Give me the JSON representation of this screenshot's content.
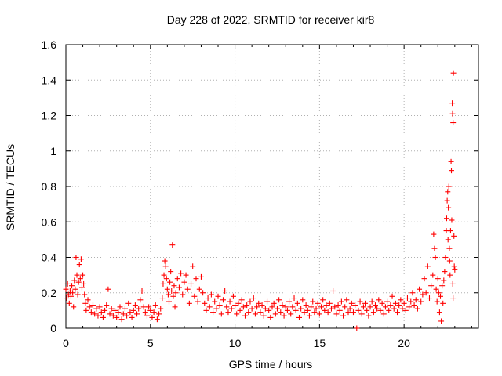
{
  "chart_data": {
    "type": "scatter",
    "title": "Day 228 of 2022, SRMTID for receiver kir8",
    "xlabel": "GPS time / hours",
    "ylabel": "SRMTID / TECUs",
    "xlim": [
      0,
      24.4
    ],
    "ylim": [
      0,
      1.6
    ],
    "xticks": [
      0,
      5,
      10,
      15,
      20
    ],
    "xtick_labels": [
      "0",
      "5",
      "10",
      "15",
      "20"
    ],
    "yticks": [
      0,
      0.2,
      0.4,
      0.6,
      0.8,
      1.0,
      1.2,
      1.4,
      1.6
    ],
    "ytick_labels": [
      "0",
      "0.2",
      "0.4",
      "0.6",
      "0.8",
      "1",
      "1.2",
      "1.4",
      "1.6"
    ],
    "grid": true,
    "marker": "+",
    "color": "#ff0000",
    "series": [
      {
        "name": "SRMTID",
        "points": [
          [
            0.0,
            0.22
          ],
          [
            0.05,
            0.17
          ],
          [
            0.1,
            0.25
          ],
          [
            0.15,
            0.19
          ],
          [
            0.2,
            0.14
          ],
          [
            0.25,
            0.21
          ],
          [
            0.3,
            0.18
          ],
          [
            0.35,
            0.24
          ],
          [
            0.4,
            0.2
          ],
          [
            0.45,
            0.12
          ],
          [
            0.5,
            0.27
          ],
          [
            0.55,
            0.22
          ],
          [
            0.6,
            0.4
          ],
          [
            0.65,
            0.3
          ],
          [
            0.7,
            0.19
          ],
          [
            0.75,
            0.26
          ],
          [
            0.8,
            0.36
          ],
          [
            0.85,
            0.28
          ],
          [
            0.9,
            0.39
          ],
          [
            0.95,
            0.23
          ],
          [
            1.0,
            0.3
          ],
          [
            1.05,
            0.25
          ],
          [
            1.1,
            0.19
          ],
          [
            1.15,
            0.14
          ],
          [
            1.2,
            0.1
          ],
          [
            1.3,
            0.16
          ],
          [
            1.4,
            0.12
          ],
          [
            1.5,
            0.09
          ],
          [
            1.6,
            0.13
          ],
          [
            1.7,
            0.08
          ],
          [
            1.8,
            0.11
          ],
          [
            1.9,
            0.07
          ],
          [
            2.0,
            0.12
          ],
          [
            2.1,
            0.09
          ],
          [
            2.2,
            0.06
          ],
          [
            2.3,
            0.1
          ],
          [
            2.4,
            0.13
          ],
          [
            2.5,
            0.22
          ],
          [
            2.6,
            0.08
          ],
          [
            2.7,
            0.11
          ],
          [
            2.8,
            0.07
          ],
          [
            2.9,
            0.1
          ],
          [
            3.0,
            0.06
          ],
          [
            3.1,
            0.09
          ],
          [
            3.2,
            0.12
          ],
          [
            3.3,
            0.05
          ],
          [
            3.4,
            0.08
          ],
          [
            3.5,
            0.11
          ],
          [
            3.6,
            0.07
          ],
          [
            3.7,
            0.14
          ],
          [
            3.8,
            0.09
          ],
          [
            3.9,
            0.06
          ],
          [
            4.0,
            0.1
          ],
          [
            4.1,
            0.13
          ],
          [
            4.2,
            0.08
          ],
          [
            4.3,
            0.11
          ],
          [
            4.4,
            0.16
          ],
          [
            4.5,
            0.21
          ],
          [
            4.6,
            0.12
          ],
          [
            4.7,
            0.09
          ],
          [
            4.8,
            0.07
          ],
          [
            4.9,
            0.12
          ],
          [
            5.0,
            0.1
          ],
          [
            5.1,
            0.06
          ],
          [
            5.2,
            0.09
          ],
          [
            5.3,
            0.13
          ],
          [
            5.4,
            0.05
          ],
          [
            5.5,
            0.08
          ],
          [
            5.6,
            0.11
          ],
          [
            5.7,
            0.17
          ],
          [
            5.75,
            0.25
          ],
          [
            5.8,
            0.3
          ],
          [
            5.85,
            0.38
          ],
          [
            5.9,
            0.35
          ],
          [
            5.95,
            0.28
          ],
          [
            6.0,
            0.22
          ],
          [
            6.05,
            0.19
          ],
          [
            6.1,
            0.15
          ],
          [
            6.15,
            0.26
          ],
          [
            6.2,
            0.32
          ],
          [
            6.25,
            0.21
          ],
          [
            6.3,
            0.47
          ],
          [
            6.35,
            0.18
          ],
          [
            6.4,
            0.24
          ],
          [
            6.45,
            0.12
          ],
          [
            6.5,
            0.2
          ],
          [
            6.6,
            0.28
          ],
          [
            6.7,
            0.23
          ],
          [
            6.8,
            0.31
          ],
          [
            6.9,
            0.19
          ],
          [
            7.0,
            0.26
          ],
          [
            7.1,
            0.3
          ],
          [
            7.2,
            0.22
          ],
          [
            7.3,
            0.14
          ],
          [
            7.4,
            0.25
          ],
          [
            7.5,
            0.35
          ],
          [
            7.6,
            0.18
          ],
          [
            7.7,
            0.28
          ],
          [
            7.8,
            0.15
          ],
          [
            7.9,
            0.22
          ],
          [
            8.0,
            0.29
          ],
          [
            8.1,
            0.2
          ],
          [
            8.2,
            0.14
          ],
          [
            8.3,
            0.1
          ],
          [
            8.4,
            0.17
          ],
          [
            8.5,
            0.12
          ],
          [
            8.6,
            0.19
          ],
          [
            8.7,
            0.09
          ],
          [
            8.8,
            0.15
          ],
          [
            8.9,
            0.11
          ],
          [
            9.0,
            0.18
          ],
          [
            9.1,
            0.13
          ],
          [
            9.2,
            0.08
          ],
          [
            9.3,
            0.16
          ],
          [
            9.4,
            0.21
          ],
          [
            9.5,
            0.12
          ],
          [
            9.6,
            0.09
          ],
          [
            9.7,
            0.15
          ],
          [
            9.8,
            0.11
          ],
          [
            9.9,
            0.18
          ],
          [
            10.0,
            0.13
          ],
          [
            10.1,
            0.08
          ],
          [
            10.2,
            0.14
          ],
          [
            10.3,
            0.1
          ],
          [
            10.4,
            0.16
          ],
          [
            10.5,
            0.12
          ],
          [
            10.6,
            0.07
          ],
          [
            10.7,
            0.13
          ],
          [
            10.8,
            0.09
          ],
          [
            10.9,
            0.15
          ],
          [
            11.0,
            0.11
          ],
          [
            11.1,
            0.17
          ],
          [
            11.2,
            0.08
          ],
          [
            11.3,
            0.12
          ],
          [
            11.4,
            0.14
          ],
          [
            11.5,
            0.09
          ],
          [
            11.6,
            0.13
          ],
          [
            11.7,
            0.07
          ],
          [
            11.8,
            0.11
          ],
          [
            11.9,
            0.15
          ],
          [
            12.0,
            0.1
          ],
          [
            12.1,
            0.06
          ],
          [
            12.2,
            0.12
          ],
          [
            12.3,
            0.14
          ],
          [
            12.4,
            0.08
          ],
          [
            12.5,
            0.11
          ],
          [
            12.6,
            0.16
          ],
          [
            12.7,
            0.09
          ],
          [
            12.8,
            0.13
          ],
          [
            12.9,
            0.07
          ],
          [
            13.0,
            0.12
          ],
          [
            13.1,
            0.1
          ],
          [
            13.2,
            0.15
          ],
          [
            13.3,
            0.08
          ],
          [
            13.4,
            0.12
          ],
          [
            13.5,
            0.17
          ],
          [
            13.6,
            0.1
          ],
          [
            13.7,
            0.14
          ],
          [
            13.8,
            0.06
          ],
          [
            13.9,
            0.11
          ],
          [
            14.0,
            0.16
          ],
          [
            14.1,
            0.09
          ],
          [
            14.2,
            0.13
          ],
          [
            14.3,
            0.1
          ],
          [
            14.4,
            0.07
          ],
          [
            14.5,
            0.12
          ],
          [
            14.6,
            0.15
          ],
          [
            14.7,
            0.09
          ],
          [
            14.8,
            0.11
          ],
          [
            14.9,
            0.14
          ],
          [
            15.0,
            0.08
          ],
          [
            15.1,
            0.12
          ],
          [
            15.2,
            0.16
          ],
          [
            15.3,
            0.1
          ],
          [
            15.4,
            0.13
          ],
          [
            15.5,
            0.09
          ],
          [
            15.6,
            0.14
          ],
          [
            15.7,
            0.11
          ],
          [
            15.8,
            0.21
          ],
          [
            15.9,
            0.12
          ],
          [
            16.0,
            0.08
          ],
          [
            16.1,
            0.13
          ],
          [
            16.2,
            0.1
          ],
          [
            16.3,
            0.15
          ],
          [
            16.4,
            0.07
          ],
          [
            16.5,
            0.12
          ],
          [
            16.6,
            0.16
          ],
          [
            16.7,
            0.09
          ],
          [
            16.8,
            0.11
          ],
          [
            16.9,
            0.14
          ],
          [
            17.0,
            0.09
          ],
          [
            17.1,
            0.13
          ],
          [
            17.2,
            0.0
          ],
          [
            17.3,
            0.1
          ],
          [
            17.4,
            0.15
          ],
          [
            17.5,
            0.08
          ],
          [
            17.6,
            0.12
          ],
          [
            17.7,
            0.14
          ],
          [
            17.8,
            0.1
          ],
          [
            17.9,
            0.07
          ],
          [
            18.0,
            0.12
          ],
          [
            18.1,
            0.15
          ],
          [
            18.2,
            0.09
          ],
          [
            18.3,
            0.13
          ],
          [
            18.4,
            0.11
          ],
          [
            18.5,
            0.16
          ],
          [
            18.6,
            0.1
          ],
          [
            18.7,
            0.14
          ],
          [
            18.8,
            0.08
          ],
          [
            18.9,
            0.12
          ],
          [
            19.0,
            0.15
          ],
          [
            19.1,
            0.1
          ],
          [
            19.2,
            0.13
          ],
          [
            19.3,
            0.18
          ],
          [
            19.4,
            0.11
          ],
          [
            19.5,
            0.14
          ],
          [
            19.6,
            0.09
          ],
          [
            19.7,
            0.13
          ],
          [
            19.8,
            0.16
          ],
          [
            19.9,
            0.11
          ],
          [
            20.0,
            0.14
          ],
          [
            20.1,
            0.1
          ],
          [
            20.2,
            0.17
          ],
          [
            20.3,
            0.12
          ],
          [
            20.4,
            0.15
          ],
          [
            20.5,
            0.2
          ],
          [
            20.6,
            0.13
          ],
          [
            20.7,
            0.16
          ],
          [
            20.8,
            0.11
          ],
          [
            20.9,
            0.22
          ],
          [
            21.0,
            0.15
          ],
          [
            21.1,
            0.19
          ],
          [
            21.2,
            0.28
          ],
          [
            21.3,
            0.2
          ],
          [
            21.4,
            0.35
          ],
          [
            21.5,
            0.17
          ],
          [
            21.6,
            0.24
          ],
          [
            21.7,
            0.3
          ],
          [
            21.75,
            0.53
          ],
          [
            21.8,
            0.45
          ],
          [
            21.85,
            0.4
          ],
          [
            21.9,
            0.22
          ],
          [
            21.95,
            0.15
          ],
          [
            22.0,
            0.28
          ],
          [
            22.05,
            0.2
          ],
          [
            22.1,
            0.09
          ],
          [
            22.15,
            0.18
          ],
          [
            22.2,
            0.04
          ],
          [
            22.25,
            0.24
          ],
          [
            22.3,
            0.14
          ],
          [
            22.35,
            0.27
          ],
          [
            22.4,
            0.32
          ],
          [
            22.45,
            0.4
          ],
          [
            22.5,
            0.55
          ],
          [
            22.52,
            0.62
          ],
          [
            22.55,
            0.72
          ],
          [
            22.58,
            0.77
          ],
          [
            22.6,
            0.5
          ],
          [
            22.62,
            0.68
          ],
          [
            22.65,
            0.8
          ],
          [
            22.68,
            0.45
          ],
          [
            22.7,
            0.38
          ],
          [
            22.72,
            0.3
          ],
          [
            22.75,
            0.55
          ],
          [
            22.78,
            0.94
          ],
          [
            22.8,
            0.89
          ],
          [
            22.82,
            0.61
          ],
          [
            22.85,
            1.27
          ],
          [
            22.87,
            1.21
          ],
          [
            22.9,
            1.16
          ],
          [
            22.92,
            1.44
          ],
          [
            22.95,
            0.52
          ],
          [
            22.97,
            0.35
          ],
          [
            23.0,
            0.33
          ],
          [
            22.88,
            0.25
          ],
          [
            22.9,
            0.17
          ]
        ]
      }
    ]
  }
}
